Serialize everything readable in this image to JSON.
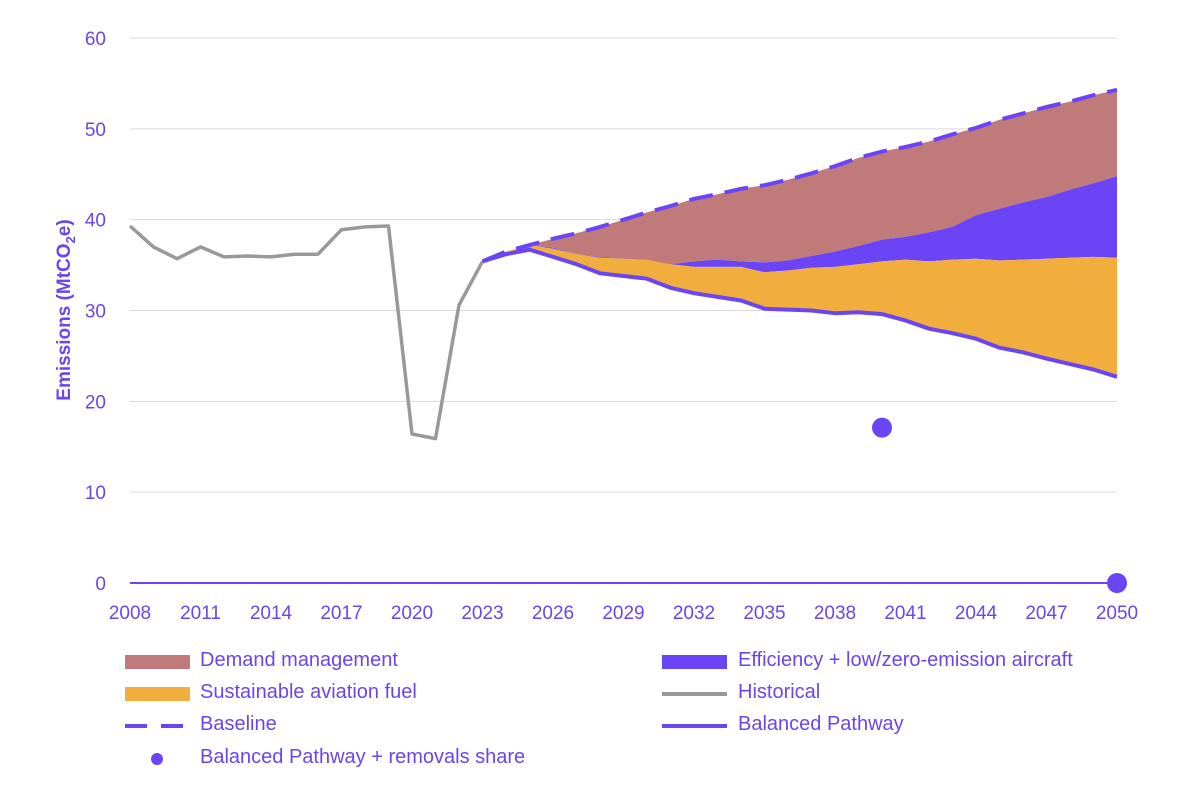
{
  "colors": {
    "demand": "#c07a7a",
    "efficiency": "#6b45f5",
    "saf": "#f2ae3d",
    "historical": "#999999",
    "pathway": "#6b45f5",
    "text": "#6a45f0",
    "grid": "#d9d9d9"
  },
  "chart_data": {
    "type": "area",
    "title": "",
    "xlabel": "",
    "ylabel": "Emissions (MtCO2e)",
    "ylabel_parts": {
      "before": "Emissions (MtCO",
      "sub": "2",
      "after": "e)"
    },
    "ylim": [
      0,
      60
    ],
    "yticks": [
      0,
      10,
      20,
      30,
      40,
      50,
      60
    ],
    "xlim": [
      2008,
      2050
    ],
    "xticks": [
      2008,
      2011,
      2014,
      2017,
      2020,
      2023,
      2026,
      2029,
      2032,
      2035,
      2038,
      2041,
      2044,
      2047,
      2050
    ],
    "historical": {
      "name": "Historical",
      "x": [
        2008,
        2009,
        2010,
        2011,
        2012,
        2013,
        2014,
        2015,
        2016,
        2017,
        2018,
        2019,
        2020,
        2021,
        2022,
        2023
      ],
      "values": [
        39.3,
        37.0,
        35.7,
        37.0,
        35.9,
        36.0,
        35.9,
        36.2,
        36.2,
        38.9,
        39.2,
        39.3,
        16.4,
        15.9,
        30.6,
        35.4
      ]
    },
    "projection_x": [
      2023,
      2024,
      2025,
      2026,
      2027,
      2028,
      2029,
      2030,
      2031,
      2032,
      2033,
      2034,
      2035,
      2036,
      2037,
      2038,
      2039,
      2040,
      2041,
      2042,
      2043,
      2044,
      2045,
      2046,
      2047,
      2048,
      2049,
      2050
    ],
    "baseline": {
      "name": "Baseline",
      "values": [
        35.4,
        36.5,
        37.2,
        37.9,
        38.5,
        39.2,
        40.0,
        40.8,
        41.5,
        42.3,
        42.8,
        43.4,
        43.8,
        44.4,
        45.1,
        45.9,
        46.8,
        47.5,
        48.0,
        48.6,
        49.4,
        50.1,
        51.0,
        51.7,
        52.4,
        53.0,
        53.7,
        54.3
      ]
    },
    "after_demand_management": [
      35.4,
      36.5,
      37.2,
      36.9,
      36.2,
      35.9,
      35.7,
      35.5,
      35.1,
      35.4,
      35.6,
      35.4,
      35.3,
      35.5,
      36.0,
      36.5,
      37.1,
      37.8,
      38.1,
      38.6,
      39.2,
      40.5,
      41.2,
      41.9,
      42.5,
      43.3,
      44.0,
      44.8
    ],
    "after_efficiency": [
      35.4,
      36.5,
      37.2,
      36.8,
      36.2,
      35.8,
      35.7,
      35.6,
      35.1,
      34.8,
      34.8,
      34.8,
      34.2,
      34.4,
      34.7,
      34.8,
      35.1,
      35.4,
      35.6,
      35.4,
      35.6,
      35.7,
      35.5,
      35.6,
      35.7,
      35.8,
      35.9,
      35.8
    ],
    "balanced_pathway": {
      "name": "Balanced Pathway",
      "values": [
        35.4,
        36.2,
        36.7,
        35.9,
        35.1,
        34.1,
        33.8,
        33.5,
        32.5,
        31.9,
        31.5,
        31.1,
        30.2,
        30.1,
        30.0,
        29.7,
        29.8,
        29.6,
        28.9,
        28.0,
        27.5,
        26.9,
        25.9,
        25.4,
        24.7,
        24.1,
        23.5,
        22.7
      ]
    },
    "removals_points": {
      "name": "Balanced Pathway + removals share",
      "x": [
        2040,
        2050
      ],
      "values": [
        17.1,
        0
      ]
    },
    "series_labels": {
      "demand": "Demand management",
      "efficiency": "Efficiency + low/zero-emission aircraft",
      "saf": "Sustainable aviation fuel"
    }
  },
  "legend": [
    {
      "key": "demand",
      "label": "Demand management"
    },
    {
      "key": "efficiency",
      "label": "Efficiency + low/zero-emission aircraft"
    },
    {
      "key": "saf",
      "label": "Sustainable aviation fuel"
    },
    {
      "key": "historical",
      "label": "Historical"
    },
    {
      "key": "baseline",
      "label": "Baseline"
    },
    {
      "key": "pathway",
      "label": "Balanced Pathway"
    },
    {
      "key": "removals",
      "label": "Balanced Pathway + removals share"
    }
  ]
}
